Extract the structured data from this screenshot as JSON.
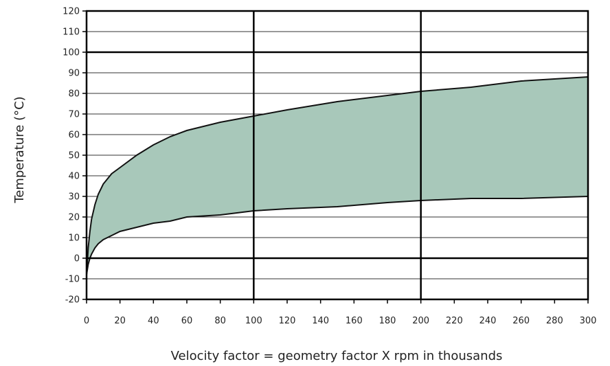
{
  "chart_data": {
    "type": "area",
    "xlabel": "Velocity factor = geometry factor X rpm in thousands",
    "ylabel": "Temperature (°C)",
    "xlim": [
      0,
      300
    ],
    "ylim": [
      -20,
      120
    ],
    "x_ticks": [
      0,
      20,
      40,
      60,
      80,
      100,
      120,
      140,
      160,
      180,
      200,
      220,
      240,
      260,
      280,
      300
    ],
    "y_ticks": [
      -20,
      -10,
      0,
      10,
      20,
      30,
      40,
      50,
      60,
      70,
      80,
      90,
      100,
      110,
      120
    ],
    "major_gridlines": {
      "x": [
        100,
        200
      ],
      "y": [
        0,
        100
      ]
    },
    "grid": true,
    "fill_color": "#a8c8ba",
    "line_color": "#111111",
    "series": [
      {
        "role": "upper",
        "x": [
          0,
          1,
          2,
          3,
          5,
          7,
          10,
          15,
          20,
          30,
          40,
          50,
          60,
          80,
          100,
          120,
          150,
          180,
          200,
          230,
          260,
          300
        ],
        "values": [
          -8,
          5,
          13,
          19,
          26,
          31,
          36,
          41,
          44,
          50,
          55,
          59,
          62,
          66,
          69,
          72,
          76,
          79,
          81,
          83,
          86,
          88
        ]
      },
      {
        "role": "lower",
        "x": [
          0,
          1,
          2,
          3,
          5,
          7,
          10,
          15,
          20,
          30,
          40,
          50,
          60,
          80,
          100,
          120,
          150,
          180,
          200,
          230,
          260,
          300
        ],
        "values": [
          -8,
          -3,
          0,
          2,
          5,
          7,
          9,
          11,
          13,
          15,
          17,
          18,
          20,
          21,
          23,
          24,
          25,
          27,
          28,
          29,
          29,
          30
        ]
      }
    ]
  }
}
